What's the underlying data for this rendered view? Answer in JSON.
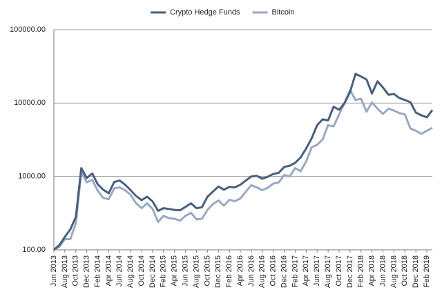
{
  "chart_data": {
    "type": "line",
    "series": [
      {
        "name": "Crypto Hedge Funds",
        "color": "#46607f",
        "values": [
          100,
          116,
          150,
          190,
          280,
          1300,
          950,
          1100,
          780,
          660,
          590,
          840,
          880,
          770,
          650,
          540,
          475,
          530,
          455,
          340,
          370,
          360,
          350,
          345,
          385,
          430,
          370,
          380,
          530,
          620,
          730,
          660,
          720,
          710,
          770,
          880,
          1000,
          1020,
          930,
          990,
          1080,
          1120,
          1350,
          1400,
          1530,
          1820,
          2400,
          3300,
          5000,
          6000,
          5800,
          8900,
          8100,
          10000,
          14200,
          25000,
          23000,
          21000,
          13500,
          19800,
          16300,
          13000,
          13300,
          11700,
          11000,
          10300,
          7400,
          6800,
          6400,
          8000
        ]
      },
      {
        "name": "Bitcoin",
        "color": "#9aa8c3",
        "values": [
          100,
          110,
          140,
          140,
          230,
          1150,
          830,
          900,
          640,
          510,
          490,
          690,
          710,
          650,
          560,
          430,
          370,
          430,
          360,
          240,
          290,
          270,
          265,
          250,
          290,
          320,
          260,
          265,
          350,
          420,
          470,
          400,
          480,
          460,
          500,
          620,
          760,
          710,
          650,
          700,
          800,
          830,
          1050,
          1000,
          1300,
          1180,
          1600,
          2500,
          2700,
          3200,
          5000,
          4800,
          7000,
          10000,
          15000,
          11000,
          11500,
          7600,
          10200,
          8400,
          7100,
          8400,
          7900,
          7300,
          7000,
          4500,
          4200,
          3800,
          4200,
          4600
        ]
      }
    ],
    "categories": [
      "Jun 2013",
      null,
      "Aug 2013",
      null,
      "Oct 2013",
      null,
      "Dec 2013",
      null,
      "Feb 2014",
      null,
      "Apr 2014",
      null,
      "Jun 2014",
      null,
      "Aug 2014",
      null,
      "Oct 2014",
      null,
      "Dec 2014",
      null,
      "Feb 2015",
      null,
      "Apr 2015",
      null,
      "Jun 2015",
      null,
      "Aug 2015",
      null,
      "Oct 2015",
      null,
      "Dec 2015",
      null,
      "Feb 2016",
      null,
      "Apr 2016",
      null,
      "Jun 2016",
      null,
      "Aug 2016",
      null,
      "Oct 2016",
      null,
      "Dec 2016",
      null,
      "Feb 2017",
      null,
      "Apr 2017",
      null,
      "Jun 2017",
      null,
      "Aug 2017",
      null,
      "Oct 2017",
      null,
      "Dec 2017",
      null,
      "Feb 2018",
      null,
      "Apr 2018",
      null,
      "Jun 2018",
      null,
      "Aug 2018",
      null,
      "Oct 2018",
      null,
      "Dec 2018",
      null,
      "Feb 2019",
      null
    ],
    "ylim": [
      100,
      100000
    ],
    "yticks": [
      {
        "value": 100,
        "label": "100.00"
      },
      {
        "value": 1000,
        "label": "1000.00"
      },
      {
        "value": 10000,
        "label": "10000.00"
      },
      {
        "value": 100000,
        "label": "100000.00"
      }
    ],
    "log_scale": true,
    "grid": true,
    "legend": "top"
  }
}
